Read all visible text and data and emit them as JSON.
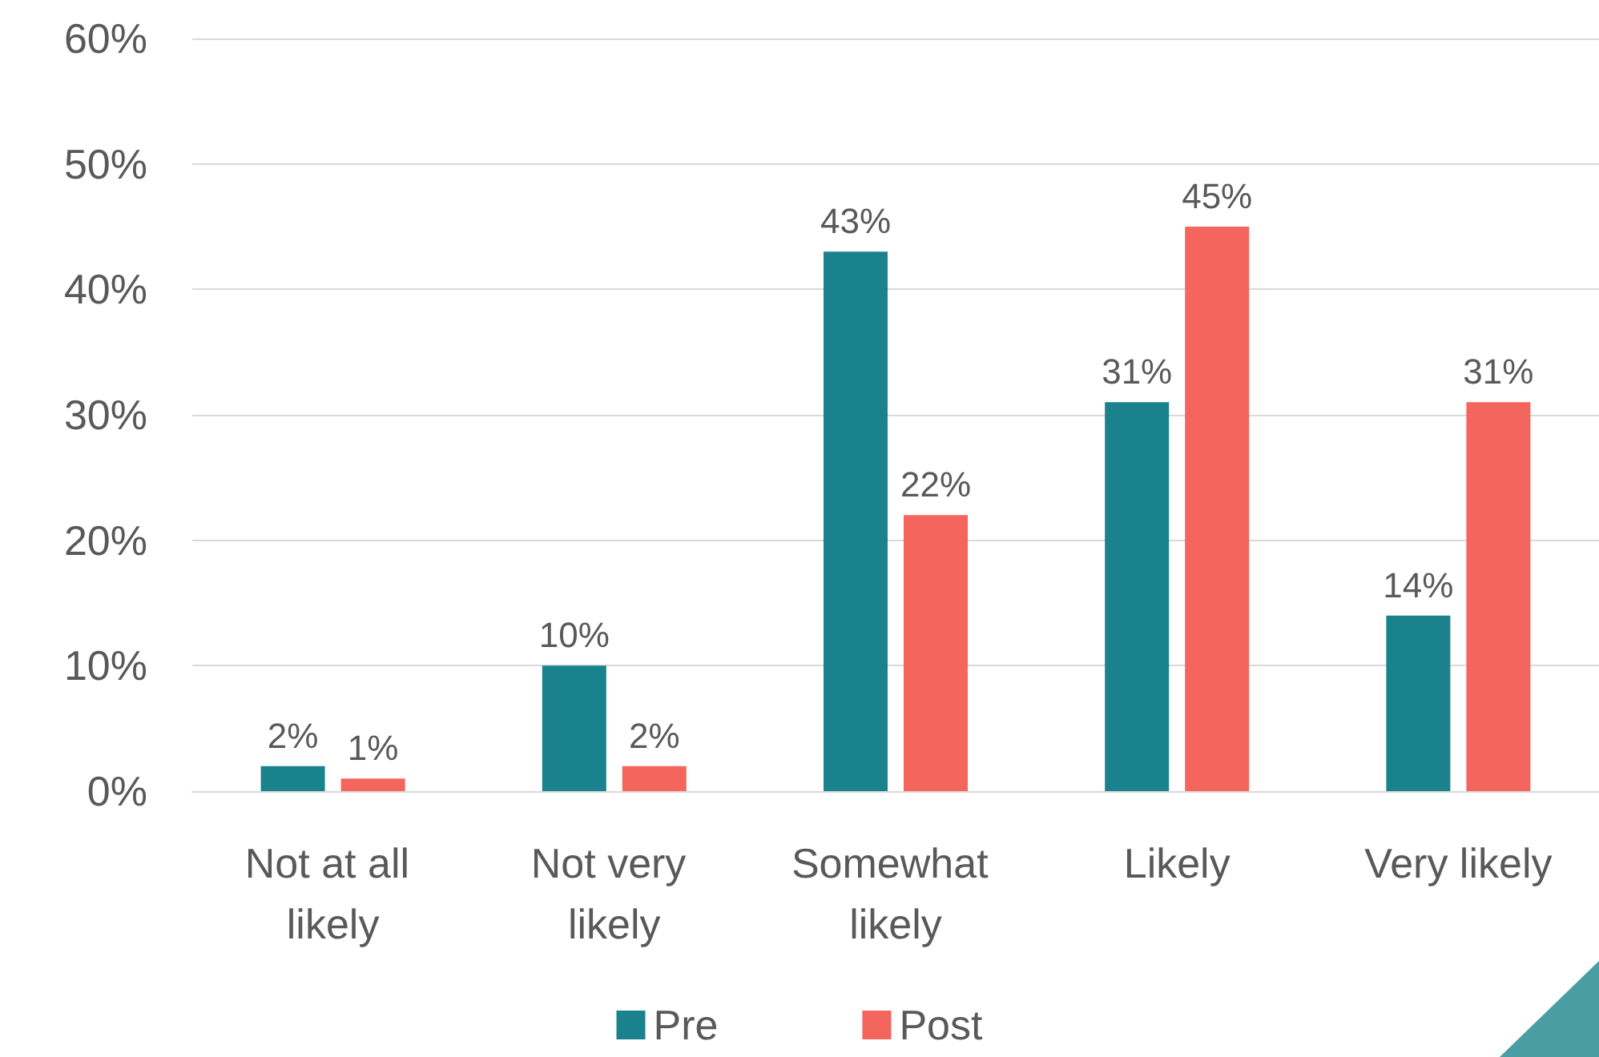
{
  "chart_data": {
    "type": "bar",
    "categories": [
      "Not at all likely",
      "Not very likely",
      "Somewhat likely",
      "Likely",
      "Very likely"
    ],
    "series": [
      {
        "name": "Pre",
        "color": "#1a828c",
        "values": [
          2,
          10,
          43,
          31,
          14
        ],
        "value_labels": [
          "2%",
          "10%",
          "43%",
          "31%",
          "14%"
        ]
      },
      {
        "name": "Post",
        "color": "#f4655e",
        "values": [
          1,
          2,
          22,
          45,
          31
        ],
        "value_labels": [
          "1%",
          "2%",
          "22%",
          "45%",
          "31%"
        ]
      }
    ],
    "ylim": [
      0,
      60
    ],
    "yticks": [
      {
        "value": 0,
        "label": "0%"
      },
      {
        "value": 10,
        "label": "10%"
      },
      {
        "value": 20,
        "label": "20%"
      },
      {
        "value": 30,
        "label": "30%"
      },
      {
        "value": 40,
        "label": "40%"
      },
      {
        "value": 50,
        "label": "50%"
      },
      {
        "value": 60,
        "label": "60%"
      }
    ],
    "grid": "y",
    "legend": "bottom"
  }
}
